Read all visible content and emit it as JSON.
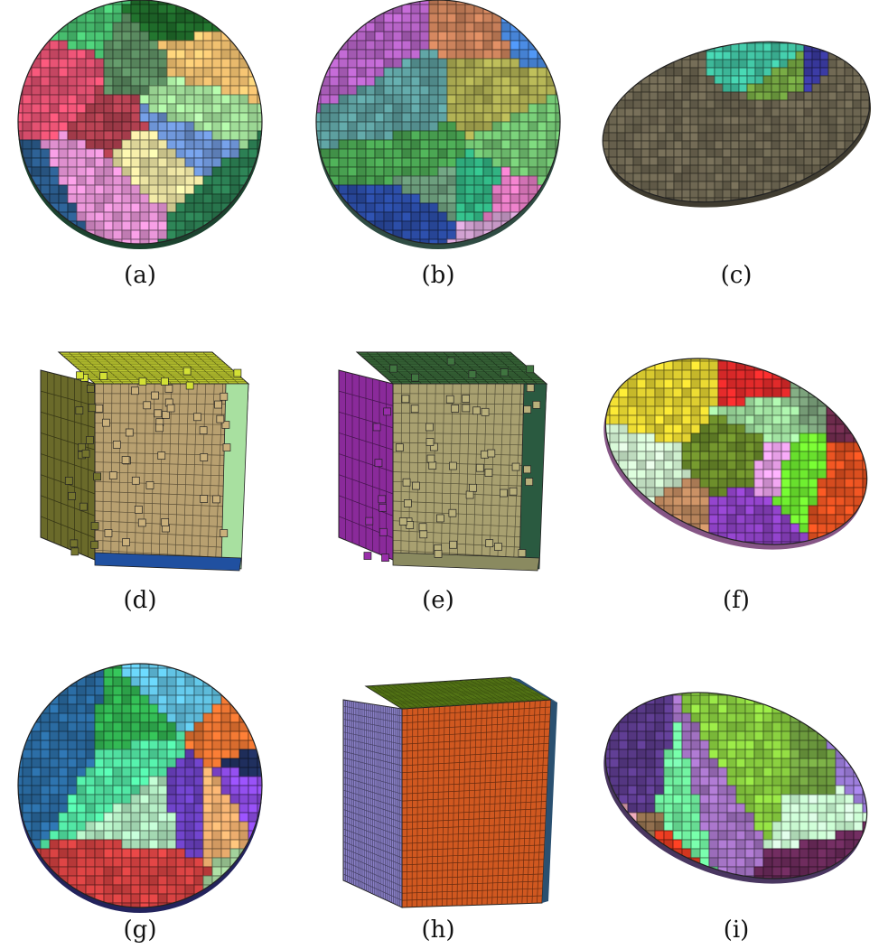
{
  "panels": [
    {
      "label": "(a)",
      "shape": "sphere",
      "base": "#2f6f4f",
      "colors": [
        "#e8e0a0",
        "#e05070",
        "#b04050",
        "#2a5a8a",
        "#a8e8a0",
        "#e090d0",
        "#1f6a2a",
        "#5a8a60",
        "#f0c070",
        "#6a90d0",
        "#48c070",
        "#2a7a50"
      ]
    },
    {
      "label": "(b)",
      "shape": "sphere",
      "base": "#4f7f6f",
      "colors": [
        "#c8805a",
        "#5a9a9a",
        "#6a9a7a",
        "#2a4aa0",
        "#4a8ae0",
        "#e07ac0",
        "#70c070",
        "#b060c0",
        "#a8a850",
        "#48a050",
        "#d0a0d0",
        "#30b080"
      ]
    },
    {
      "label": "(c)",
      "shape": "disc",
      "base": "#6b6450",
      "colors": [
        "#3a3aa0",
        "#70a040",
        "#40c0a0",
        "#c03090",
        "#e0d050",
        "#60c070"
      ]
    },
    {
      "label": "(d)",
      "shape": "cube",
      "top": "#c0cc30",
      "left": "#6a6a2a",
      "right": "#b8a070",
      "side": "#a8e0a0",
      "bottom": "#2050a0"
    },
    {
      "label": "(e)",
      "shape": "cube",
      "top": "#3a6a3a",
      "left": "#8a2a9a",
      "right": "#a8a070",
      "side": "#2a5a40",
      "bottom": "#8a8a60"
    },
    {
      "label": "(f)",
      "shape": "ellipse",
      "base": "#e090e0",
      "colors": [
        "#e02a2a",
        "#e0d030",
        "#c08a60",
        "#e8a0e8",
        "#70f030",
        "#8a40c0",
        "#6a8a2a",
        "#e05020",
        "#6a2a4a",
        "#a0e0a0",
        "#d0f0d0",
        "#7aa07a"
      ]
    },
    {
      "label": "(g)",
      "shape": "sphere",
      "base": "#3a3a9a",
      "colors": [
        "#f0b070",
        "#30b050",
        "#2a6aa0",
        "#8a4ae0",
        "#e07030",
        "#a8d8a0",
        "#60c0e0",
        "#b0e8c0",
        "#203060",
        "#50e0a0",
        "#6a40c0",
        "#d04040"
      ]
    },
    {
      "label": "(h)",
      "shape": "cube",
      "top": "#7aaa20",
      "left": "#8a80c8",
      "right": "#d05820",
      "side": "#2a5070",
      "bottom": "#8a80c8"
    },
    {
      "label": "(i)",
      "shape": "ellipse",
      "base": "#7a5aa0",
      "colors": [
        "#70f0a0",
        "#c8f8d0",
        "#e03a20",
        "#8ad040",
        "#a070c0",
        "#6a2a5a",
        "#60c030",
        "#a080e0",
        "#8a6a4a",
        "#e0a0b0",
        "#70a040",
        "#5a3a8a"
      ]
    }
  ]
}
